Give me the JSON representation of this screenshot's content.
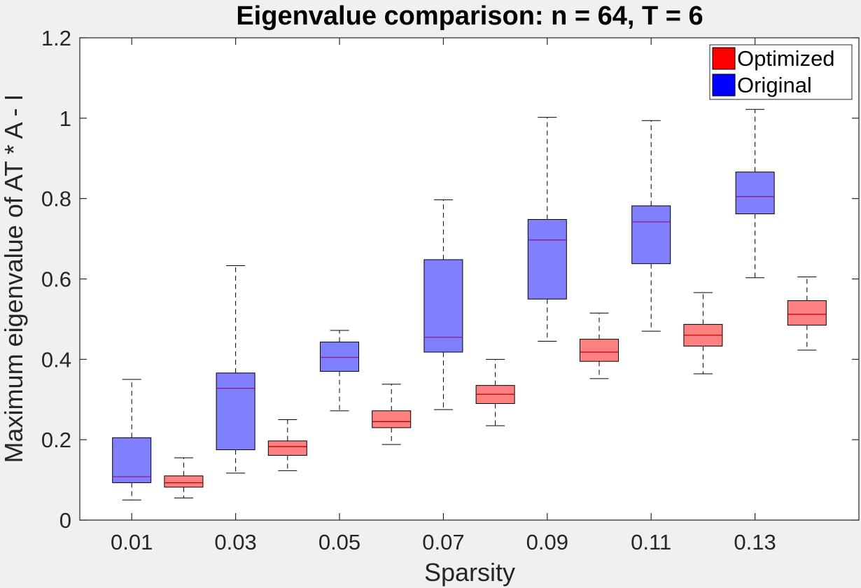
{
  "chart_data": {
    "type": "boxplot",
    "title": "Eigenvalue comparison: n = 64, T = 6",
    "xlabel": "Sparsity",
    "ylabel": "Maximum eigenvalue of AT * A - I",
    "ylim": [
      0,
      1.2
    ],
    "yticks": [
      "0",
      "0.2",
      "0.4",
      "0.6",
      "0.8",
      "1",
      "1.2"
    ],
    "xtick_labels": [
      "0.01",
      "0.03",
      "0.05",
      "0.07",
      "0.09",
      "0.11",
      "0.13"
    ],
    "legend": {
      "placement": "top-right",
      "entries": [
        {
          "name": "Optimized",
          "color": "#ff0000"
        },
        {
          "name": "Original",
          "color": "#0000ff"
        }
      ]
    },
    "colors": {
      "original_fill": "#8080ff",
      "optimized_fill": "#ff8080",
      "original_median": "#8b1a8b",
      "optimized_median": "#c00000"
    },
    "series": [
      {
        "name": "Original",
        "boxes": [
          {
            "slot": 1,
            "min": 0.05,
            "q1": 0.093,
            "median": 0.108,
            "q3": 0.205,
            "max": 0.35
          },
          {
            "slot": 3,
            "min": 0.117,
            "q1": 0.175,
            "median": 0.328,
            "q3": 0.366,
            "max": 0.633
          },
          {
            "slot": 5,
            "min": 0.272,
            "q1": 0.37,
            "median": 0.405,
            "q3": 0.443,
            "max": 0.472
          },
          {
            "slot": 7,
            "min": 0.275,
            "q1": 0.418,
            "median": 0.455,
            "q3": 0.648,
            "max": 0.797
          },
          {
            "slot": 9,
            "min": 0.445,
            "q1": 0.55,
            "median": 0.697,
            "q3": 0.748,
            "max": 1.002
          },
          {
            "slot": 11,
            "min": 0.47,
            "q1": 0.638,
            "median": 0.742,
            "q3": 0.782,
            "max": 0.994
          },
          {
            "slot": 13,
            "min": 0.603,
            "q1": 0.762,
            "median": 0.805,
            "q3": 0.866,
            "max": 1.022
          }
        ]
      },
      {
        "name": "Optimized",
        "boxes": [
          {
            "slot": 2,
            "min": 0.055,
            "q1": 0.082,
            "median": 0.093,
            "q3": 0.11,
            "max": 0.155
          },
          {
            "slot": 4,
            "min": 0.123,
            "q1": 0.161,
            "median": 0.183,
            "q3": 0.197,
            "max": 0.25
          },
          {
            "slot": 6,
            "min": 0.188,
            "q1": 0.23,
            "median": 0.245,
            "q3": 0.272,
            "max": 0.338
          },
          {
            "slot": 8,
            "min": 0.235,
            "q1": 0.29,
            "median": 0.313,
            "q3": 0.335,
            "max": 0.4
          },
          {
            "slot": 10,
            "min": 0.352,
            "q1": 0.395,
            "median": 0.418,
            "q3": 0.45,
            "max": 0.515
          },
          {
            "slot": 12,
            "min": 0.364,
            "q1": 0.433,
            "median": 0.46,
            "q3": 0.487,
            "max": 0.566
          },
          {
            "slot": 14,
            "min": 0.423,
            "q1": 0.485,
            "median": 0.512,
            "q3": 0.546,
            "max": 0.605
          }
        ]
      }
    ]
  }
}
